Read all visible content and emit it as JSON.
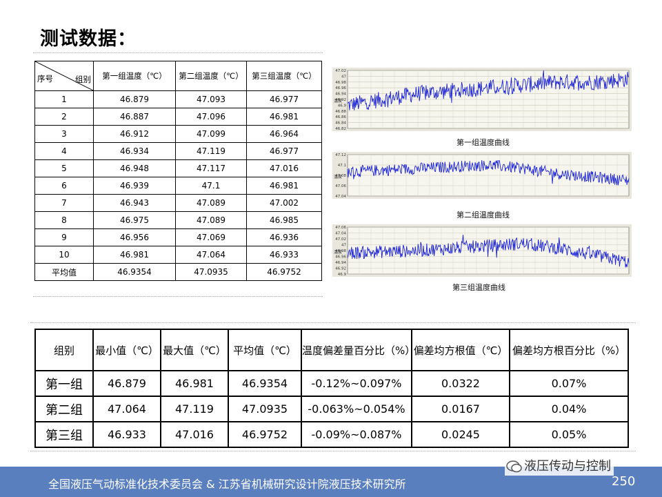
{
  "title": "测试数据：",
  "table1": {
    "corner_left": "序号",
    "corner_right": "组别",
    "headers": [
      "第一组温度（℃）",
      "第二组温度（℃）",
      "第三组温度（℃）"
    ],
    "rows": [
      [
        "1",
        "46.879",
        "47.093",
        "46.977"
      ],
      [
        "2",
        "46.887",
        "47.096",
        "46.981"
      ],
      [
        "3",
        "46.912",
        "47.099",
        "46.964"
      ],
      [
        "4",
        "46.934",
        "47.119",
        "46.977"
      ],
      [
        "5",
        "46.948",
        "47.117",
        "47.016"
      ],
      [
        "6",
        "46.939",
        "47.1",
        "46.981"
      ],
      [
        "7",
        "46.943",
        "47.089",
        "47.002"
      ],
      [
        "8",
        "46.975",
        "47.089",
        "46.985"
      ],
      [
        "9",
        "46.956",
        "47.069",
        "46.936"
      ],
      [
        "10",
        "46.981",
        "47.064",
        "46.933"
      ],
      [
        "平均值",
        "46.9354",
        "47.0935",
        "46.9752"
      ]
    ]
  },
  "chart_data": [
    {
      "type": "line",
      "title": "第一组温度曲线",
      "ylabel": "温度",
      "yticks": [
        "47.02",
        "47",
        "46.98",
        "46.96",
        "46.94",
        "46.92",
        "46.9",
        "46.88",
        "46.86",
        "46.84",
        "46.82"
      ],
      "ylim": [
        46.82,
        47.02
      ],
      "series": [
        {
          "trend": [
            46.9,
            46.92,
            46.94,
            46.95,
            46.96,
            46.97,
            46.98,
            46.98,
            46.99
          ]
        }
      ]
    },
    {
      "type": "line",
      "title": "第二组温度曲线",
      "ylabel": "温度",
      "yticks": [
        "47.12",
        "47.1",
        "47.08",
        "47.06",
        "47.04"
      ],
      "ylim": [
        47.02,
        47.14
      ],
      "series": [
        {
          "trend": [
            47.09,
            47.095,
            47.1,
            47.105,
            47.11,
            47.1,
            47.085,
            47.075,
            47.065
          ]
        }
      ]
    },
    {
      "type": "line",
      "title": "第三组温度曲线",
      "ylabel": "温度",
      "yticks": [
        "47.06",
        "47.04",
        "47.02",
        "47",
        "46.98",
        "46.96",
        "46.94",
        "46.92",
        "46.9"
      ],
      "ylim": [
        46.88,
        47.08
      ],
      "series": [
        {
          "trend": [
            46.97,
            46.975,
            46.98,
            46.99,
            47.0,
            47.01,
            46.99,
            46.96,
            46.93
          ]
        }
      ]
    }
  ],
  "table2": {
    "headers": [
      "组别",
      "最小值（℃）",
      "最大值（℃）",
      "平均值（℃）",
      "温度偏差量百分比（%）",
      "偏差均方根值（℃）",
      "偏差均方根百分比（%）"
    ],
    "rows": [
      [
        "第一组",
        "46.879",
        "46.981",
        "46.9354",
        "-0.12%~0.097%",
        "0.0322",
        "0.07%"
      ],
      [
        "第二组",
        "47.064",
        "47.119",
        "47.0935",
        "-0.063%~0.054%",
        "0.0167",
        "0.04%"
      ],
      [
        "第三组",
        "46.933",
        "47.016",
        "46.9752",
        "-0.09%~0.087%",
        "0.0245",
        "0.05%"
      ]
    ]
  },
  "footer": {
    "text": "全国液压气动标准化技术委员会 & 江苏省机械研究设计院液压技术研究所",
    "watermark": "液压传动与控制",
    "page_number": "250"
  },
  "colors": {
    "footer_bg": "#5a7fbf",
    "line": "#1a22d6",
    "chart_bg": "#e9e7dd"
  }
}
